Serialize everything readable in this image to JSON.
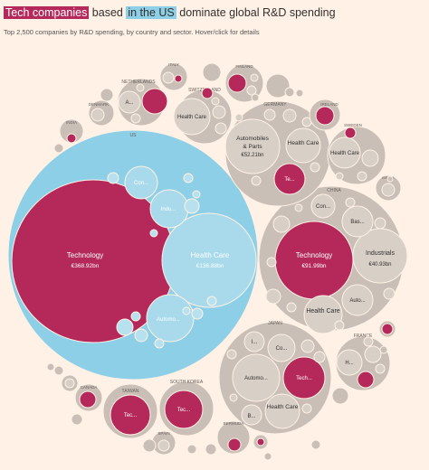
{
  "header": {
    "title_part1": "Tech companies",
    "title_part2": " based ",
    "title_part3": "in the US",
    "title_part4": " dominate global R&D spending",
    "subtitle": "Top 2,500 companies by R&D spending, by country and sector. Hover/click for details"
  },
  "colors": {
    "background": "#fff1e5",
    "country_us": "#8dcfe6",
    "sector_us": "#a8daec",
    "sector_us_small": "#b8e1f0",
    "country_other": "#c9bfb6",
    "sector_other": "#d8cfc7",
    "technology": "#b5295a"
  },
  "chart_data": {
    "type": "bubble",
    "title": "Tech companies based in the US dominate global R&D spending",
    "unit": "€bn",
    "countries": [
      {
        "name": "US",
        "sectors": [
          {
            "name": "Technology",
            "label": "Technology",
            "value_label": "€368.92bn",
            "value": 368.92
          },
          {
            "name": "Health Care",
            "label": "Health Care",
            "value_label": "€136.88bn",
            "value": 136.88
          },
          {
            "name": "Automobiles & Parts",
            "label": "Automo...",
            "value": null
          },
          {
            "name": "Industrials",
            "label": "Indu...",
            "value": null
          },
          {
            "name": "Consumer",
            "label": "Con...",
            "value": null
          }
        ]
      },
      {
        "name": "China",
        "sectors": [
          {
            "name": "Technology",
            "label": "Technology",
            "value_label": "€91.99bn",
            "value": 91.99
          },
          {
            "name": "Industrials",
            "label": "Industrials",
            "value_label": "€40.93bn",
            "value": 40.93
          },
          {
            "name": "Health Care",
            "label": "Health Care",
            "value": null
          },
          {
            "name": "Automobiles & Parts",
            "label": "Auto...",
            "value": null
          },
          {
            "name": "Basic Materials",
            "label": "Bas...",
            "value": null
          },
          {
            "name": "Consumer",
            "label": "Con...",
            "value": null
          }
        ]
      },
      {
        "name": "Germany",
        "sectors": [
          {
            "name": "Automobiles & Parts",
            "label": "Automobiles & Parts",
            "value_label": "€52.21bn",
            "value": 52.21
          },
          {
            "name": "Health Care",
            "label": "Health Care",
            "value": null
          },
          {
            "name": "Technology",
            "label": "Te...",
            "value": null
          }
        ]
      },
      {
        "name": "Japan",
        "sectors": [
          {
            "name": "Technology",
            "label": "Tech...",
            "value": null
          },
          {
            "name": "Health Care",
            "label": "Health Care",
            "value": null
          },
          {
            "name": "Automobiles & Parts",
            "label": "Automo...",
            "value": null
          },
          {
            "name": "Consumer",
            "label": "Co...",
            "value": null
          },
          {
            "name": "Industrials",
            "label": "I...",
            "value": null
          },
          {
            "name": "Basic Materials",
            "label": "B...",
            "value": null
          }
        ]
      },
      {
        "name": "Switzerland",
        "sectors": [
          {
            "name": "Health Care",
            "label": "Health Care",
            "value": null
          }
        ]
      },
      {
        "name": "Netherlands",
        "sectors": [
          {
            "name": "Technology",
            "label": "",
            "value": null
          },
          {
            "name": "Other",
            "label": "A...",
            "value": null
          }
        ]
      },
      {
        "name": "Ireland",
        "sectors": [
          {
            "name": "Health Care",
            "label": "Health Care",
            "value": null
          }
        ]
      },
      {
        "name": "France",
        "sectors": [
          {
            "name": "Health Care",
            "label": "H...",
            "value": null
          }
        ]
      },
      {
        "name": "South Korea",
        "sectors": [
          {
            "name": "Technology",
            "label": "Tec...",
            "value": null
          }
        ]
      },
      {
        "name": "Taiwan",
        "sectors": [
          {
            "name": "Technology",
            "label": "Tec...",
            "value": null
          }
        ]
      },
      {
        "name": "Sweden",
        "sectors": []
      },
      {
        "name": "Finland",
        "sectors": []
      },
      {
        "name": "Denmark",
        "sectors": []
      },
      {
        "name": "Italy",
        "sectors": []
      },
      {
        "name": "India",
        "sectors": []
      },
      {
        "name": "Canada",
        "sectors": []
      },
      {
        "name": "Bermuda",
        "sectors": []
      },
      {
        "name": "Israel",
        "sectors": []
      },
      {
        "name": "Spain",
        "sectors": []
      }
    ]
  },
  "circle_labels": {
    "us": "US",
    "us_tech": "Technology",
    "us_tech_value": "€368.92bn",
    "us_health": "Health Care",
    "us_health_value": "€136.88bn",
    "us_auto": "Automo...",
    "us_indu": "Indu...",
    "us_con": "Con...",
    "china": "CHINA",
    "china_tech": "Technology",
    "china_tech_value": "€91.99bn",
    "china_indu": "Industrials",
    "china_indu_value": "€40.93bn",
    "china_health": "Health Care",
    "china_auto": "Auto...",
    "china_bas": "Bas...",
    "china_con": "Con...",
    "germany": "GERMANY",
    "germany_auto_1": "Automobiles",
    "germany_auto_2": "& Parts",
    "germany_auto_value": "€52.21bn",
    "germany_health": "Health Care",
    "germany_tech": "Te...",
    "japan": "JAPAN",
    "japan_tech": "Tech...",
    "japan_health": "Health Care",
    "japan_auto": "Automo...",
    "japan_co": "Co...",
    "japan_i": "I...",
    "japan_b": "B...",
    "switzerland": "SWITZERLAND",
    "switzerland_health": "Health Care",
    "netherlands": "NETHERLANDS",
    "netherlands_a": "A...",
    "ireland": "IRELAND",
    "ireland_health": "Health Care",
    "france": "FRANCE",
    "france_h": "H...",
    "south_korea": "SOUTH KOREA",
    "south_korea_tec": "Tec...",
    "taiwan": "TAIWAN",
    "taiwan_tec": "Tec...",
    "sweden": "SWEDEN",
    "finland": "FINLAND",
    "denmark": "DENMARK",
    "italy": "ITALY",
    "india": "INDIA",
    "canada": "CANADA",
    "bermuda": "BERMUDA",
    "israel": "ISRAEL",
    "spain": "SPAIN"
  }
}
